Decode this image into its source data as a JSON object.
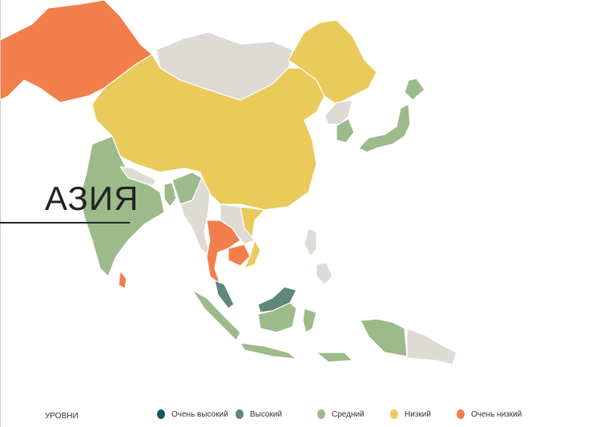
{
  "title": "АЗИЯ",
  "legend": {
    "heading": "УРОВНИ",
    "items": [
      {
        "label": "Очень высокий",
        "color": "#1b5568"
      },
      {
        "label": "Высокий",
        "color": "#5f877c"
      },
      {
        "label": "Средний",
        "color": "#9cba8a"
      },
      {
        "label": "Низкий",
        "color": "#e9ca5a"
      },
      {
        "label": "Очень низкий",
        "color": "#f27e4b"
      }
    ]
  },
  "no_data_color": "#dedad4",
  "countries": [
    {
      "name": "Kazakhstan",
      "level": "Очень низкий"
    },
    {
      "name": "Mongolia",
      "level": null
    },
    {
      "name": "China",
      "level": "Низкий"
    },
    {
      "name": "Russia (Far East)",
      "level": "Низкий"
    },
    {
      "name": "India",
      "level": "Средний"
    },
    {
      "name": "Sri Lanka",
      "level": "Очень низкий"
    },
    {
      "name": "Bangladesh",
      "level": "Средний"
    },
    {
      "name": "Nepal",
      "level": null
    },
    {
      "name": "Myanmar",
      "level": null
    },
    {
      "name": "Thailand",
      "level": "Очень низкий"
    },
    {
      "name": "Cambodia",
      "level": "Очень низкий"
    },
    {
      "name": "Laos",
      "level": null
    },
    {
      "name": "Vietnam",
      "level": "Низкий"
    },
    {
      "name": "Malaysia",
      "level": "Высокий"
    },
    {
      "name": "Indonesia",
      "level": "Средний"
    },
    {
      "name": "Papua New Guinea",
      "level": null
    },
    {
      "name": "Philippines",
      "level": null
    },
    {
      "name": "Japan",
      "level": "Средний"
    },
    {
      "name": "South Korea",
      "level": "Средний"
    },
    {
      "name": "North Korea",
      "level": null
    }
  ]
}
